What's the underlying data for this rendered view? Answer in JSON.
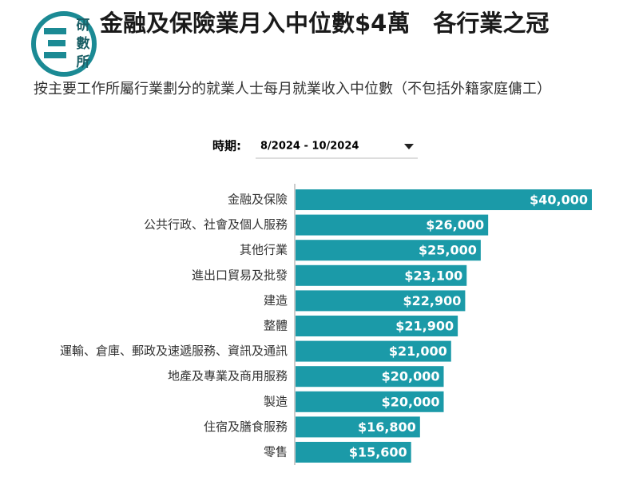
{
  "logo": [
    "研",
    "數",
    "所"
  ],
  "chart_data": {
    "type": "bar",
    "orientation": "horizontal",
    "title": "金融及保險業月入中位數$4萬　各行業之冠",
    "subtitle": "按主要工作所屬行業劃分的就業人士每月就業收入中位數（不包括外籍家庭傭工）",
    "period_label": "時期:",
    "period": "8/2024 - 10/2024",
    "color": "#1b9aa8",
    "categories": [
      "金融及保險",
      "公共行政、社會及個人服務",
      "其他行業",
      "進出口貿易及批發",
      "建造",
      "整體",
      "運輸、倉庫、郵政及速遞服務、資訊及通訊",
      "地產及專業及商用服務",
      "製造",
      "住宿及膳食服務",
      "零售"
    ],
    "values": [
      40000,
      26000,
      25000,
      23100,
      22900,
      21900,
      21000,
      20000,
      20000,
      16800,
      15600
    ],
    "value_labels": [
      "$40,000",
      "$26,000",
      "$25,000",
      "$23,100",
      "$22,900",
      "$21,900",
      "$21,000",
      "$20,000",
      "$20,000",
      "$16,800",
      "$15,600"
    ]
  }
}
